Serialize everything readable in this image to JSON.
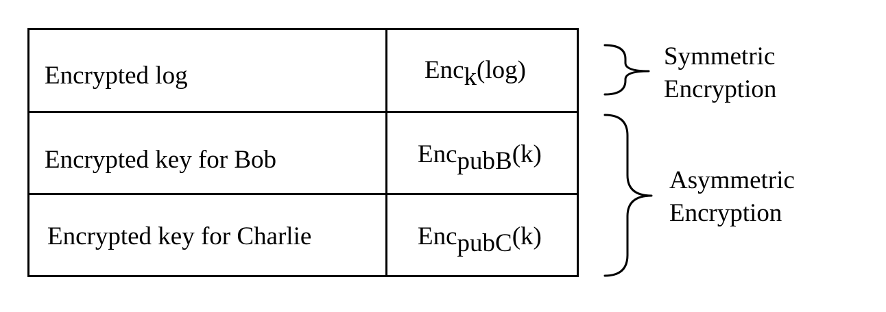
{
  "table": {
    "rows": [
      {
        "description": "Encrypted log",
        "enc_prefix": "Enc",
        "enc_sub": "k",
        "enc_arg": "(log)"
      },
      {
        "description": "Encrypted key for Bob",
        "enc_prefix": "Enc",
        "enc_sub": "pubB",
        "enc_arg": "(k)"
      },
      {
        "description": "Encrypted key for Charlie",
        "enc_prefix": "Enc",
        "enc_sub": "pubC",
        "enc_arg": "(k)"
      }
    ]
  },
  "annotations": {
    "symmetric": {
      "line1": "Symmetric",
      "line2": "Encryption"
    },
    "asymmetric": {
      "line1": "Asymmetric",
      "line2": "Encryption"
    }
  }
}
